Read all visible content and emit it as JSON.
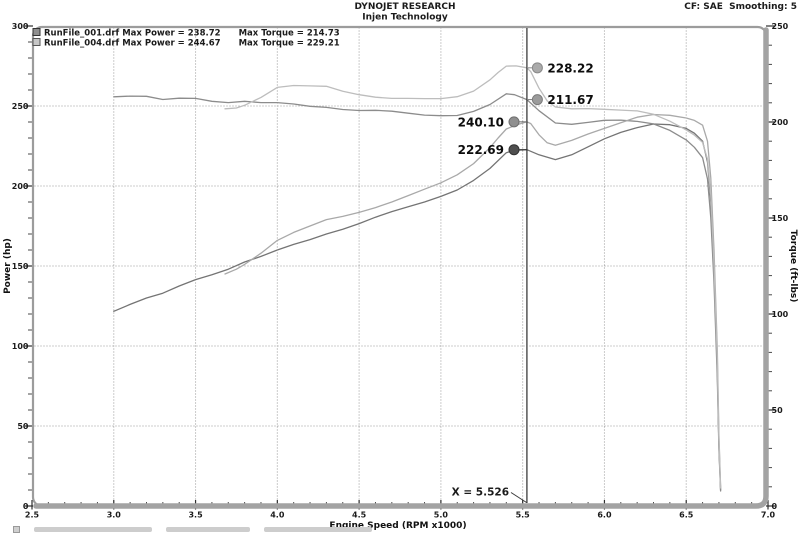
{
  "header": {
    "cf_smoothing": "CF: SAE  Smoothing: 5"
  },
  "chart_data": {
    "type": "line",
    "title": "DYNOJET RESEARCH",
    "subtitle": "Injen Technology",
    "xlabel": "Engine Speed (RPM x1000)",
    "ylabel_left": "Power (hp)",
    "ylabel_right": "Torque (ft-lbs)",
    "xlim": [
      2.5,
      7.0
    ],
    "ylim_left": [
      0,
      300
    ],
    "ylim_right": [
      0,
      250
    ],
    "xticks": [
      "2.5",
      "3.0",
      "3.5",
      "4.0",
      "4.5",
      "5.0",
      "5.5",
      "6.0",
      "6.5",
      "7.0"
    ],
    "yticks_left": [
      300,
      250,
      200,
      150,
      100,
      50,
      0
    ],
    "yticks_right": [
      250,
      200,
      150,
      100,
      50,
      0
    ],
    "grid": "dotted",
    "legend_position": "top-left",
    "cursor": {
      "x": 5.526,
      "label": "X = 5.526"
    },
    "legend": {
      "rows": [
        {
          "swatch": "#8f8f8f",
          "name_power": "RunFile_001.drf Max Power = 238.72",
          "torque": "Max Torque = 214.73"
        },
        {
          "swatch": "#c6c6c6",
          "name_power": "RunFile_004.drf Max Power = 244.67",
          "torque": "Max Torque = 229.21"
        }
      ]
    },
    "series": [
      {
        "name": "RunFile_001.drf Power (hp)",
        "axis": "left",
        "color": "#747474",
        "points": [
          [
            3.0,
            121.7
          ],
          [
            3.1,
            126
          ],
          [
            3.2,
            130
          ],
          [
            3.3,
            133
          ],
          [
            3.4,
            137.5
          ],
          [
            3.5,
            141.5
          ],
          [
            3.6,
            144.5
          ],
          [
            3.7,
            148
          ],
          [
            3.8,
            152.5
          ],
          [
            3.9,
            156
          ],
          [
            4.0,
            160
          ],
          [
            4.1,
            163.5
          ],
          [
            4.2,
            166.5
          ],
          [
            4.3,
            170
          ],
          [
            4.4,
            173
          ],
          [
            4.5,
            176.5
          ],
          [
            4.6,
            180.5
          ],
          [
            4.7,
            184
          ],
          [
            4.8,
            187
          ],
          [
            4.9,
            190
          ],
          [
            5.0,
            193.5
          ],
          [
            5.1,
            197.5
          ],
          [
            5.2,
            203.5
          ],
          [
            5.3,
            211
          ],
          [
            5.4,
            220.8
          ],
          [
            5.45,
            222.3
          ],
          [
            5.526,
            222.69
          ],
          [
            5.6,
            219.5
          ],
          [
            5.7,
            216.5
          ],
          [
            5.8,
            219.5
          ],
          [
            5.9,
            224.5
          ],
          [
            6.0,
            229.5
          ],
          [
            6.1,
            233.5
          ],
          [
            6.2,
            236.5
          ],
          [
            6.3,
            238.72
          ],
          [
            6.4,
            238.3
          ],
          [
            6.5,
            236
          ],
          [
            6.55,
            233
          ],
          [
            6.6,
            228
          ],
          [
            6.63,
            215
          ],
          [
            6.65,
            190
          ],
          [
            6.67,
            148
          ],
          [
            6.69,
            85
          ],
          [
            6.7,
            38
          ],
          [
            6.71,
            10
          ]
        ]
      },
      {
        "name": "RunFile_001.drf Torque (ft-lbs)",
        "axis": "right",
        "color": "#8c8c8c",
        "points": [
          [
            3.0,
            213.1
          ],
          [
            3.1,
            213.5
          ],
          [
            3.2,
            213.4
          ],
          [
            3.3,
            211.7
          ],
          [
            3.4,
            212.4
          ],
          [
            3.5,
            212.3
          ],
          [
            3.6,
            210.8
          ],
          [
            3.7,
            210.1
          ],
          [
            3.8,
            210.8
          ],
          [
            3.9,
            210.1
          ],
          [
            4.0,
            210.1
          ],
          [
            4.1,
            209.4
          ],
          [
            4.2,
            208.2
          ],
          [
            4.3,
            207.6
          ],
          [
            4.4,
            206.5
          ],
          [
            4.5,
            206.0
          ],
          [
            4.6,
            206.1
          ],
          [
            4.7,
            205.6
          ],
          [
            4.8,
            204.6
          ],
          [
            4.9,
            203.6
          ],
          [
            5.0,
            203.3
          ],
          [
            5.1,
            203.4
          ],
          [
            5.2,
            205.5
          ],
          [
            5.3,
            209.1
          ],
          [
            5.4,
            214.7
          ],
          [
            5.45,
            214.2
          ],
          [
            5.526,
            211.67
          ],
          [
            5.6,
            205.9
          ],
          [
            5.7,
            199.5
          ],
          [
            5.8,
            198.8
          ],
          [
            5.9,
            199.8
          ],
          [
            6.0,
            200.9
          ],
          [
            6.1,
            201.0
          ],
          [
            6.2,
            200.3
          ],
          [
            6.3,
            199.0
          ],
          [
            6.4,
            195.6
          ],
          [
            6.5,
            190.7
          ],
          [
            6.55,
            186.8
          ],
          [
            6.6,
            181.4
          ],
          [
            6.63,
            170.3
          ],
          [
            6.65,
            150.1
          ],
          [
            6.67,
            116.5
          ],
          [
            6.69,
            66.7
          ],
          [
            6.7,
            29.8
          ],
          [
            6.71,
            7.8
          ]
        ]
      },
      {
        "name": "RunFile_004.drf Power (hp)",
        "axis": "left",
        "color": "#a9a9a9",
        "points": [
          [
            3.68,
            145
          ],
          [
            3.75,
            148
          ],
          [
            3.8,
            151
          ],
          [
            3.9,
            158
          ],
          [
            4.0,
            166
          ],
          [
            4.1,
            171
          ],
          [
            4.2,
            175
          ],
          [
            4.3,
            179
          ],
          [
            4.4,
            181
          ],
          [
            4.5,
            183.5
          ],
          [
            4.6,
            186.5
          ],
          [
            4.7,
            190
          ],
          [
            4.8,
            194
          ],
          [
            4.9,
            198
          ],
          [
            5.0,
            202
          ],
          [
            5.1,
            207
          ],
          [
            5.2,
            214
          ],
          [
            5.3,
            224
          ],
          [
            5.35,
            230
          ],
          [
            5.4,
            235.6
          ],
          [
            5.46,
            238.15
          ],
          [
            5.526,
            240.1
          ],
          [
            5.55,
            239
          ],
          [
            5.6,
            232
          ],
          [
            5.65,
            227
          ],
          [
            5.7,
            225.5
          ],
          [
            5.8,
            228.5
          ],
          [
            5.9,
            232.5
          ],
          [
            6.0,
            236
          ],
          [
            6.1,
            239.5
          ],
          [
            6.2,
            243
          ],
          [
            6.3,
            244.67
          ],
          [
            6.4,
            244.2
          ],
          [
            6.5,
            242.5
          ],
          [
            6.55,
            241
          ],
          [
            6.6,
            238
          ],
          [
            6.63,
            228
          ],
          [
            6.65,
            205
          ],
          [
            6.67,
            160
          ],
          [
            6.69,
            98
          ],
          [
            6.7,
            45
          ],
          [
            6.71,
            12
          ]
        ]
      },
      {
        "name": "RunFile_004.drf Torque (ft-lbs)",
        "axis": "right",
        "color": "#bdbdbd",
        "points": [
          [
            3.68,
            206.9
          ],
          [
            3.75,
            207.3
          ],
          [
            3.8,
            208.7
          ],
          [
            3.9,
            212.8
          ],
          [
            4.0,
            218.0
          ],
          [
            4.1,
            219.0
          ],
          [
            4.2,
            218.8
          ],
          [
            4.3,
            218.6
          ],
          [
            4.4,
            216.0
          ],
          [
            4.5,
            214.2
          ],
          [
            4.6,
            212.9
          ],
          [
            4.7,
            212.3
          ],
          [
            4.8,
            212.3
          ],
          [
            4.9,
            212.2
          ],
          [
            5.0,
            212.2
          ],
          [
            5.1,
            213.2
          ],
          [
            5.2,
            216.1
          ],
          [
            5.3,
            222.0
          ],
          [
            5.35,
            225.8
          ],
          [
            5.4,
            229.1
          ],
          [
            5.46,
            229.21
          ],
          [
            5.526,
            228.22
          ],
          [
            5.55,
            226.2
          ],
          [
            5.6,
            217.6
          ],
          [
            5.65,
            211.0
          ],
          [
            5.7,
            207.8
          ],
          [
            5.8,
            206.9
          ],
          [
            5.9,
            207.0
          ],
          [
            6.0,
            206.6
          ],
          [
            6.1,
            206.2
          ],
          [
            6.2,
            205.8
          ],
          [
            6.3,
            204.0
          ],
          [
            6.4,
            200.4
          ],
          [
            6.5,
            195.9
          ],
          [
            6.55,
            193.2
          ],
          [
            6.6,
            189.4
          ],
          [
            6.63,
            180.6
          ],
          [
            6.65,
            161.9
          ],
          [
            6.67,
            126.0
          ],
          [
            6.69,
            76.9
          ],
          [
            6.7,
            35.3
          ],
          [
            6.71,
            9.4
          ]
        ]
      }
    ],
    "markers": [
      {
        "label": "228.22",
        "value": 228.22,
        "rpm": 5.59,
        "axis": "right",
        "run": "RunFile_004.drf",
        "side": "right",
        "fill": "#aaaaaa",
        "rim": "#8a8a8a"
      },
      {
        "label": "211.67",
        "value": 211.67,
        "rpm": 5.59,
        "axis": "right",
        "run": "RunFile_001.drf",
        "side": "right",
        "fill": "#9b9b9b",
        "rim": "#7b7b7b"
      },
      {
        "label": "240.10",
        "value": 240.1,
        "rpm": 5.447,
        "axis": "left",
        "run": "RunFile_004.drf",
        "side": "left",
        "fill": "#8f8f8f",
        "rim": "#6f6f6f"
      },
      {
        "label": "222.69",
        "value": 222.69,
        "rpm": 5.447,
        "axis": "left",
        "run": "RunFile_001.drf",
        "side": "left",
        "fill": "#4f4f4f",
        "rim": "#333333"
      }
    ]
  }
}
